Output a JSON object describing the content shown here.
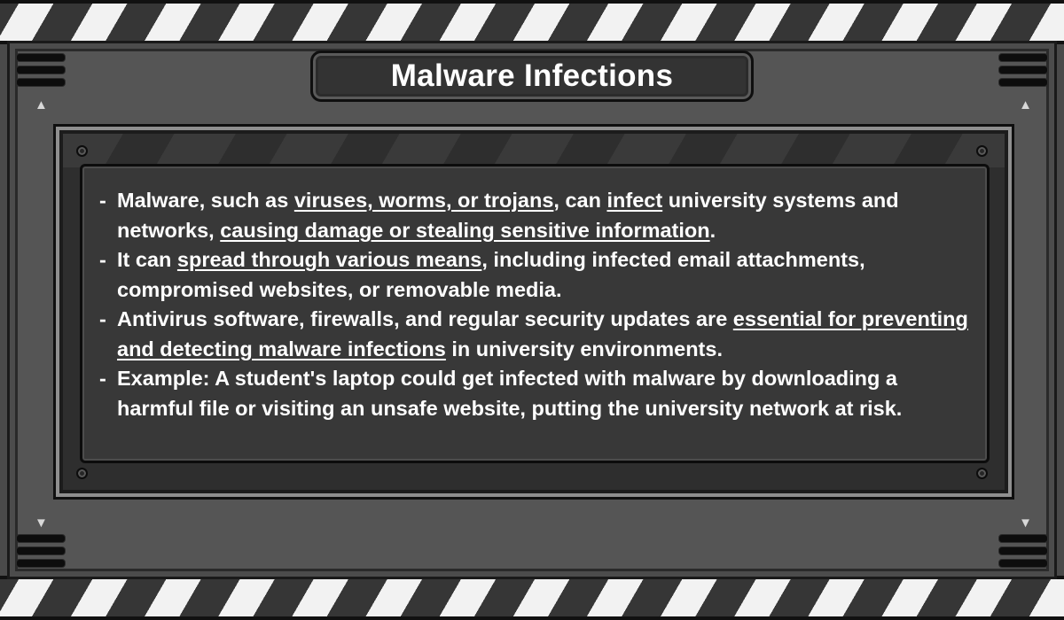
{
  "title": "Malware Infections",
  "bullet_marker": "-",
  "bullets": [
    {
      "parts": [
        {
          "text": "Malware, such as ",
          "underline": false
        },
        {
          "text": "viruses, worms, or trojans",
          "underline": true
        },
        {
          "text": ", can ",
          "underline": false
        },
        {
          "text": "infect",
          "underline": true
        },
        {
          "text": " university systems and networks, ",
          "underline": false
        },
        {
          "text": "causing damage or stealing sensitive information",
          "underline": true
        },
        {
          "text": ".",
          "underline": false
        }
      ]
    },
    {
      "parts": [
        {
          "text": "It can ",
          "underline": false
        },
        {
          "text": "spread through various means",
          "underline": true
        },
        {
          "text": ", including infected email attachments, compromised websites, or removable media.",
          "underline": false
        }
      ]
    },
    {
      "parts": [
        {
          "text": "Antivirus software, firewalls, and regular security updates are ",
          "underline": false
        },
        {
          "text": "essential for preventing and detecting malware infections",
          "underline": true
        },
        {
          "text": " in university environments.",
          "underline": false
        }
      ]
    },
    {
      "parts": [
        {
          "text": "Example: A student's laptop could get infected with malware by downloading a harmful file or visiting an unsafe website, putting the university network at risk.",
          "underline": false
        }
      ]
    }
  ],
  "icons": {
    "scroll_up": "triangle-up",
    "scroll_down": "triangle-down"
  },
  "colors": {
    "text": "#ffffff",
    "panel": "#383838",
    "frame": "#555555",
    "stripe_light": "#f2f2f2",
    "stripe_dark": "#363636"
  }
}
